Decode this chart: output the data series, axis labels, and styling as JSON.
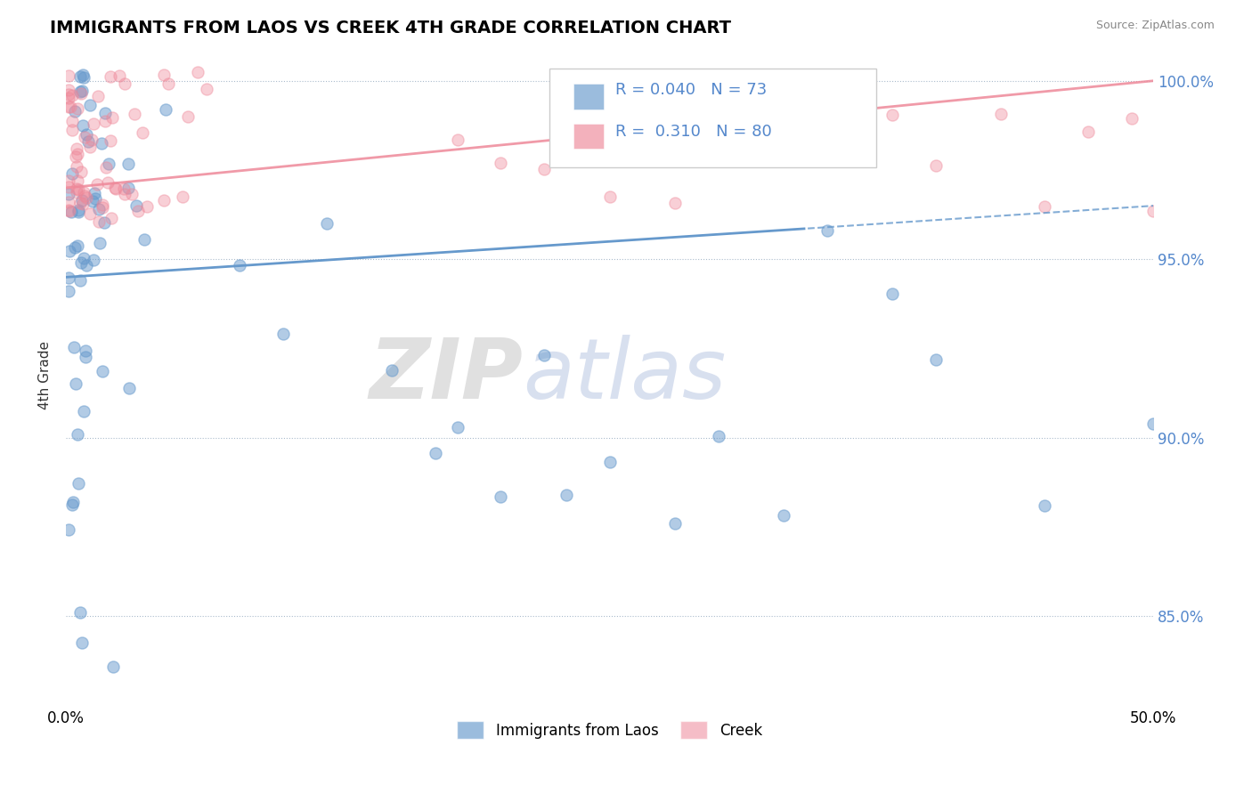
{
  "title": "IMMIGRANTS FROM LAOS VS CREEK 4TH GRADE CORRELATION CHART",
  "source_text": "Source: ZipAtlas.com",
  "ylabel": "4th Grade",
  "xlim": [
    0.0,
    0.5
  ],
  "ylim": [
    0.825,
    1.01
  ],
  "ytick_labels": [
    "85.0%",
    "90.0%",
    "95.0%",
    "100.0%"
  ],
  "ytick_positions": [
    0.85,
    0.9,
    0.95,
    1.0
  ],
  "blue_color": "#6699cc",
  "pink_color": "#ee8899",
  "blue_R": 0.04,
  "blue_N": 73,
  "pink_R": 0.31,
  "pink_N": 80,
  "legend_label_blue": "Immigrants from Laos",
  "legend_label_pink": "Creek",
  "watermark_zip": "ZIP",
  "watermark_atlas": "atlas"
}
